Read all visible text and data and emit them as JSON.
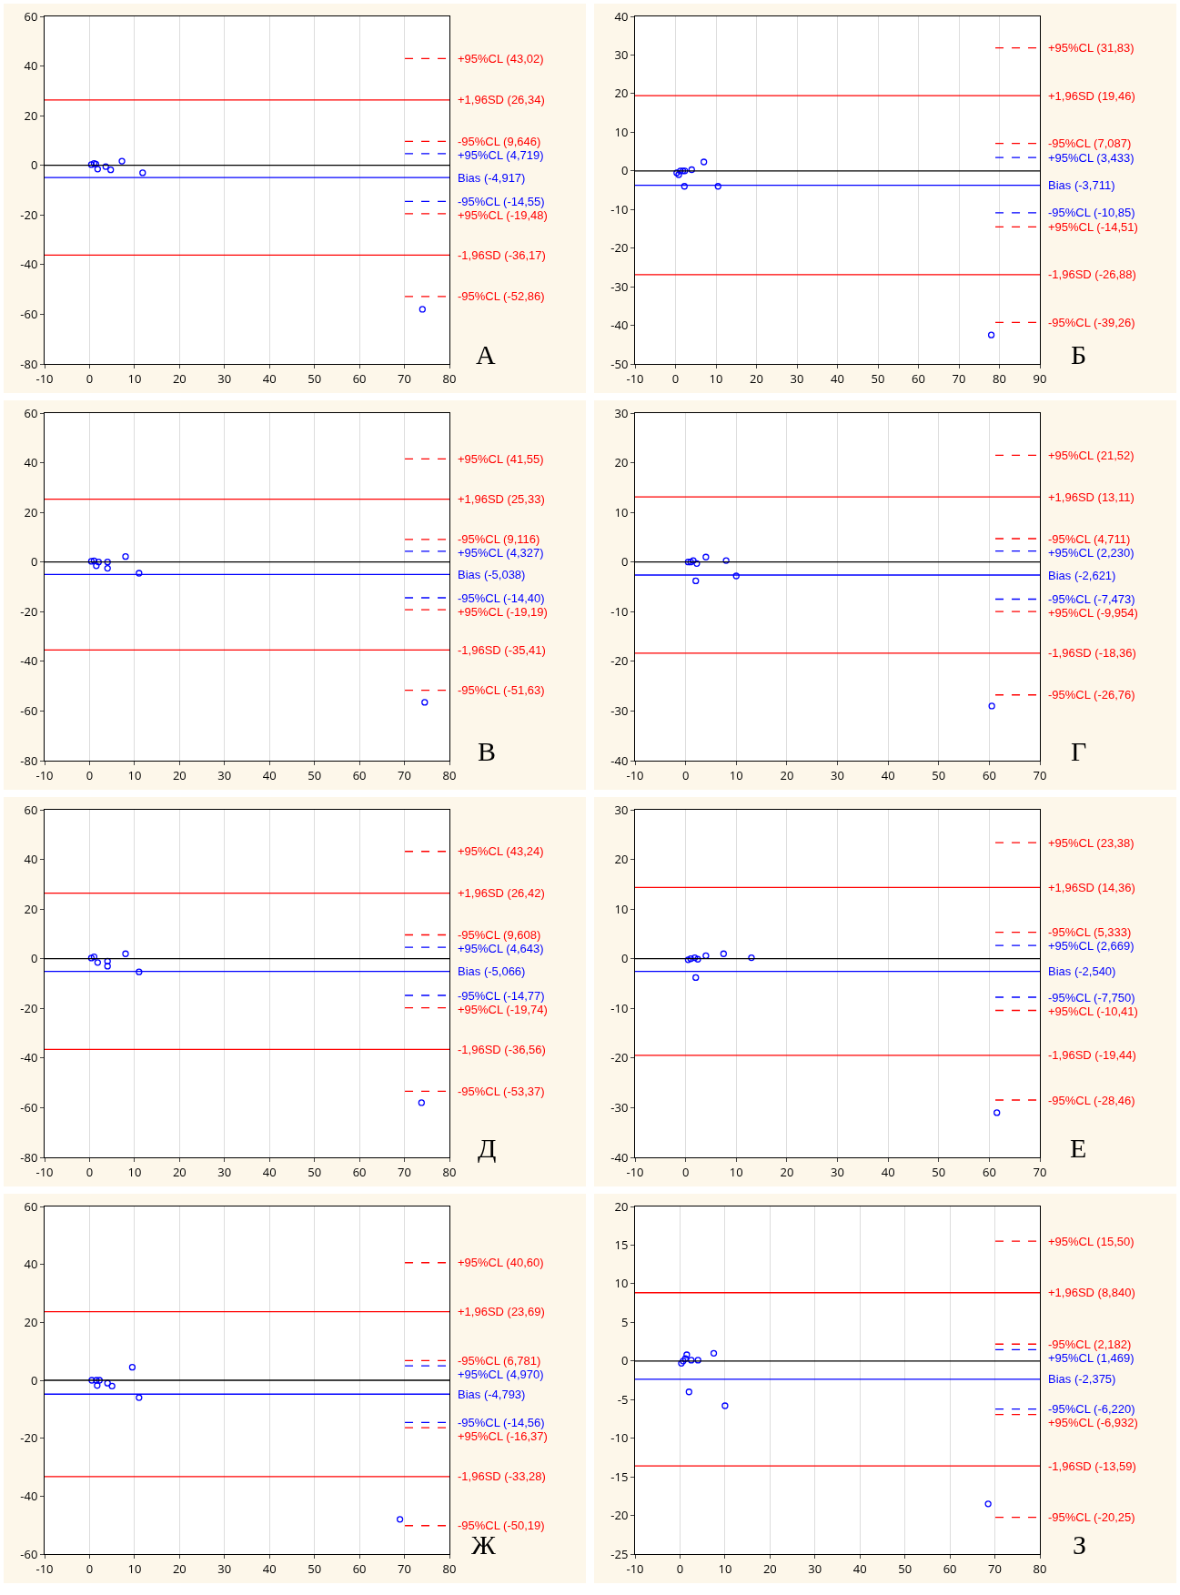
{
  "chart_data": [
    {
      "type": "scatter",
      "marker": "circle",
      "grid": "x",
      "legend": false,
      "annotations": [
        "А"
      ],
      "xlim": [
        -10,
        80
      ],
      "xticks": [
        -10,
        0,
        10,
        20,
        30,
        40,
        50,
        60,
        70,
        80
      ],
      "ylim": [
        -80,
        60
      ],
      "yticks": [
        -80,
        -60,
        -40,
        -20,
        0,
        20,
        40,
        60
      ],
      "series": [
        {
          "color": "#0000ff",
          "x": [
            0.4,
            1,
            1.4,
            1.8,
            3.6,
            4.7,
            7.2,
            11.8,
            74
          ],
          "values": [
            0.3,
            0.8,
            0.5,
            -1.5,
            -0.5,
            -1.8,
            1.7,
            -3,
            -58
          ]
        }
      ],
      "ref_lines": [
        {
          "axis": "y",
          "value": 0,
          "color": "#000000",
          "line_style": "solid"
        },
        {
          "axis": "y",
          "value": 43.02,
          "label": "+95%CL (43,02)",
          "color": "#ff0000",
          "line_style": "dashed"
        },
        {
          "axis": "y",
          "value": 26.34,
          "label": "+1,96SD (26,34)",
          "color": "#ff0000",
          "line_style": "solid"
        },
        {
          "axis": "y",
          "value": 9.646,
          "label": "-95%CL (9,646)",
          "color": "#ff0000",
          "line_style": "dashed"
        },
        {
          "axis": "y",
          "value": 4.719,
          "label": "+95%CL (4,719)",
          "color": "#0000ff",
          "line_style": "dashed"
        },
        {
          "axis": "y",
          "value": -4.917,
          "label": "Bias (-4,917)",
          "color": "#0000ff",
          "line_style": "solid"
        },
        {
          "axis": "y",
          "value": -14.55,
          "label": "-95%CL (-14,55)",
          "color": "#0000ff",
          "line_style": "dashed"
        },
        {
          "axis": "y",
          "value": -19.48,
          "label": "+95%CL (-19,48)",
          "color": "#ff0000",
          "line_style": "dashed"
        },
        {
          "axis": "y",
          "value": -36.17,
          "label": "-1,96SD (-36,17)",
          "color": "#ff0000",
          "line_style": "solid"
        },
        {
          "axis": "y",
          "value": -52.86,
          "label": "-95%CL (-52,86)",
          "color": "#ff0000",
          "line_style": "dashed"
        }
      ]
    },
    {
      "type": "scatter",
      "marker": "circle",
      "grid": "x",
      "legend": false,
      "annotations": [
        "Б"
      ],
      "xlim": [
        -10,
        90
      ],
      "xticks": [
        -10,
        0,
        10,
        20,
        30,
        40,
        50,
        60,
        70,
        80,
        90
      ],
      "ylim": [
        -50,
        40
      ],
      "yticks": [
        -50,
        -40,
        -30,
        -20,
        -10,
        0,
        10,
        20,
        30,
        40
      ],
      "series": [
        {
          "color": "#0000ff",
          "x": [
            0.3,
            0.8,
            1.2,
            1.8,
            2.3,
            4,
            7,
            2.2,
            10.5,
            78
          ],
          "values": [
            -0.5,
            -1,
            0,
            0,
            0,
            0.3,
            2.3,
            -4,
            -4,
            -42.5
          ]
        }
      ],
      "ref_lines": [
        {
          "axis": "y",
          "value": 0,
          "color": "#000000",
          "line_style": "solid"
        },
        {
          "axis": "y",
          "value": 31.83,
          "label": "+95%CL (31,83)",
          "color": "#ff0000",
          "line_style": "dashed"
        },
        {
          "axis": "y",
          "value": 19.46,
          "label": "+1,96SD (19,46)",
          "color": "#ff0000",
          "line_style": "solid"
        },
        {
          "axis": "y",
          "value": 7.087,
          "label": "-95%CL (7,087)",
          "color": "#ff0000",
          "line_style": "dashed"
        },
        {
          "axis": "y",
          "value": 3.433,
          "label": "+95%CL (3,433)",
          "color": "#0000ff",
          "line_style": "dashed"
        },
        {
          "axis": "y",
          "value": -3.711,
          "label": "Bias (-3,711)",
          "color": "#0000ff",
          "line_style": "solid"
        },
        {
          "axis": "y",
          "value": -10.85,
          "label": "-95%CL (-10,85)",
          "color": "#0000ff",
          "line_style": "dashed"
        },
        {
          "axis": "y",
          "value": -14.51,
          "label": "+95%CL (-14,51)",
          "color": "#ff0000",
          "line_style": "dashed"
        },
        {
          "axis": "y",
          "value": -26.88,
          "label": "-1,96SD (-26,88)",
          "color": "#ff0000",
          "line_style": "solid"
        },
        {
          "axis": "y",
          "value": -39.26,
          "label": "-95%CL (-39,26)",
          "color": "#ff0000",
          "line_style": "dashed"
        }
      ]
    },
    {
      "type": "scatter",
      "marker": "circle",
      "grid": "x",
      "legend": false,
      "annotations": [
        "В"
      ],
      "xlim": [
        -10,
        80
      ],
      "xticks": [
        -10,
        0,
        10,
        20,
        30,
        40,
        50,
        60,
        70,
        80
      ],
      "ylim": [
        -80,
        60
      ],
      "yticks": [
        -80,
        -60,
        -40,
        -20,
        0,
        20,
        40,
        60
      ],
      "series": [
        {
          "color": "#0000ff",
          "x": [
            0.4,
            1,
            1.5,
            2,
            4,
            4,
            8,
            11,
            74.5
          ],
          "values": [
            0.3,
            0.5,
            -1.5,
            0,
            0,
            -2.5,
            2.2,
            -4.5,
            -56.5
          ]
        }
      ],
      "ref_lines": [
        {
          "axis": "y",
          "value": 0,
          "color": "#000000",
          "line_style": "solid"
        },
        {
          "axis": "y",
          "value": 41.55,
          "label": "+95%CL (41,55)",
          "color": "#ff0000",
          "line_style": "dashed"
        },
        {
          "axis": "y",
          "value": 25.33,
          "label": "+1,96SD (25,33)",
          "color": "#ff0000",
          "line_style": "solid"
        },
        {
          "axis": "y",
          "value": 9.116,
          "label": "-95%CL (9,116)",
          "color": "#ff0000",
          "line_style": "dashed"
        },
        {
          "axis": "y",
          "value": 4.327,
          "label": "+95%CL (4,327)",
          "color": "#0000ff",
          "line_style": "dashed"
        },
        {
          "axis": "y",
          "value": -5.038,
          "label": "Bias (-5,038)",
          "color": "#0000ff",
          "line_style": "solid"
        },
        {
          "axis": "y",
          "value": -14.4,
          "label": "-95%CL (-14,40)",
          "color": "#0000ff",
          "line_style": "dashed"
        },
        {
          "axis": "y",
          "value": -19.19,
          "label": "+95%CL (-19,19)",
          "color": "#ff0000",
          "line_style": "dashed"
        },
        {
          "axis": "y",
          "value": -35.41,
          "label": "-1,96SD (-35,41)",
          "color": "#ff0000",
          "line_style": "solid"
        },
        {
          "axis": "y",
          "value": -51.63,
          "label": "-95%CL (-51,63)",
          "color": "#ff0000",
          "line_style": "dashed"
        }
      ]
    },
    {
      "type": "scatter",
      "marker": "circle",
      "grid": "x",
      "legend": false,
      "annotations": [
        "Г"
      ],
      "xlim": [
        -10,
        70
      ],
      "xticks": [
        -10,
        0,
        10,
        20,
        30,
        40,
        50,
        60,
        70
      ],
      "ylim": [
        -40,
        30
      ],
      "yticks": [
        -40,
        -30,
        -20,
        -10,
        0,
        10,
        20,
        30
      ],
      "series": [
        {
          "color": "#0000ff",
          "x": [
            0.5,
            1,
            1.5,
            2.2,
            2,
            4,
            8,
            10,
            60.5
          ],
          "values": [
            0,
            0,
            0.3,
            -0.3,
            -3.8,
            1,
            0.3,
            -2.8,
            -29
          ]
        }
      ],
      "ref_lines": [
        {
          "axis": "y",
          "value": 0,
          "color": "#000000",
          "line_style": "solid"
        },
        {
          "axis": "y",
          "value": 21.52,
          "label": "+95%CL (21,52)",
          "color": "#ff0000",
          "line_style": "dashed"
        },
        {
          "axis": "y",
          "value": 13.11,
          "label": "+1,96SD (13,11)",
          "color": "#ff0000",
          "line_style": "solid"
        },
        {
          "axis": "y",
          "value": 4.711,
          "label": "-95%CL (4,711)",
          "color": "#ff0000",
          "line_style": "dashed"
        },
        {
          "axis": "y",
          "value": 2.23,
          "label": "+95%CL (2,230)",
          "color": "#0000ff",
          "line_style": "dashed"
        },
        {
          "axis": "y",
          "value": -2.621,
          "label": "Bias (-2,621)",
          "color": "#0000ff",
          "line_style": "solid"
        },
        {
          "axis": "y",
          "value": -7.473,
          "label": "-95%CL (-7,473)",
          "color": "#0000ff",
          "line_style": "dashed"
        },
        {
          "axis": "y",
          "value": -9.954,
          "label": "+95%CL (-9,954)",
          "color": "#ff0000",
          "line_style": "dashed"
        },
        {
          "axis": "y",
          "value": -18.36,
          "label": "-1,96SD (-18,36)",
          "color": "#ff0000",
          "line_style": "solid"
        },
        {
          "axis": "y",
          "value": -26.76,
          "label": "-95%CL (-26,76)",
          "color": "#ff0000",
          "line_style": "dashed"
        }
      ]
    },
    {
      "type": "scatter",
      "marker": "circle",
      "grid": "x",
      "legend": false,
      "annotations": [
        "Д"
      ],
      "xlim": [
        -10,
        80
      ],
      "xticks": [
        -10,
        0,
        10,
        20,
        30,
        40,
        50,
        60,
        70,
        80
      ],
      "ylim": [
        -80,
        60
      ],
      "yticks": [
        -80,
        -60,
        -40,
        -20,
        0,
        20,
        40,
        60
      ],
      "series": [
        {
          "color": "#0000ff",
          "x": [
            0.4,
            1,
            1.8,
            4,
            4,
            8,
            11,
            73.8
          ],
          "values": [
            0.3,
            0.8,
            -1.5,
            -1,
            -3,
            2,
            -5.3,
            -58
          ]
        }
      ],
      "ref_lines": [
        {
          "axis": "y",
          "value": 0,
          "color": "#000000",
          "line_style": "solid"
        },
        {
          "axis": "y",
          "value": 43.24,
          "label": "+95%CL (43,24)",
          "color": "#ff0000",
          "line_style": "dashed"
        },
        {
          "axis": "y",
          "value": 26.42,
          "label": "+1,96SD (26,42)",
          "color": "#ff0000",
          "line_style": "solid"
        },
        {
          "axis": "y",
          "value": 9.608,
          "label": "-95%CL (9,608)",
          "color": "#ff0000",
          "line_style": "dashed"
        },
        {
          "axis": "y",
          "value": 4.643,
          "label": "+95%CL (4,643)",
          "color": "#0000ff",
          "line_style": "dashed"
        },
        {
          "axis": "y",
          "value": -5.066,
          "label": "Bias (-5,066)",
          "color": "#0000ff",
          "line_style": "solid"
        },
        {
          "axis": "y",
          "value": -14.77,
          "label": "-95%CL (-14,77)",
          "color": "#0000ff",
          "line_style": "dashed"
        },
        {
          "axis": "y",
          "value": -19.74,
          "label": "+95%CL (-19,74)",
          "color": "#ff0000",
          "line_style": "dashed"
        },
        {
          "axis": "y",
          "value": -36.56,
          "label": "-1,96SD (-36,56)",
          "color": "#ff0000",
          "line_style": "solid"
        },
        {
          "axis": "y",
          "value": -53.37,
          "label": "-95%CL (-53,37)",
          "color": "#ff0000",
          "line_style": "dashed"
        }
      ]
    },
    {
      "type": "scatter",
      "marker": "circle",
      "grid": "x",
      "legend": false,
      "annotations": [
        "Е"
      ],
      "xlim": [
        -10,
        70
      ],
      "xticks": [
        -10,
        0,
        10,
        20,
        30,
        40,
        50,
        60,
        70
      ],
      "ylim": [
        -40,
        30
      ],
      "yticks": [
        -40,
        -30,
        -20,
        -10,
        0,
        10,
        20,
        30
      ],
      "series": [
        {
          "color": "#0000ff",
          "x": [
            0.5,
            1,
            1.8,
            2.4,
            2,
            4,
            7.5,
            13,
            61.5
          ],
          "values": [
            -0.2,
            0,
            0.2,
            -0.1,
            -3.8,
            0.6,
            1,
            0.2,
            -31
          ]
        }
      ],
      "ref_lines": [
        {
          "axis": "y",
          "value": 0,
          "color": "#000000",
          "line_style": "solid"
        },
        {
          "axis": "y",
          "value": 23.38,
          "label": "+95%CL (23,38)",
          "color": "#ff0000",
          "line_style": "dashed"
        },
        {
          "axis": "y",
          "value": 14.36,
          "label": "+1,96SD (14,36)",
          "color": "#ff0000",
          "line_style": "solid"
        },
        {
          "axis": "y",
          "value": 5.333,
          "label": "-95%CL (5,333)",
          "color": "#ff0000",
          "line_style": "dashed"
        },
        {
          "axis": "y",
          "value": 2.669,
          "label": "+95%CL (2,669)",
          "color": "#0000ff",
          "line_style": "dashed"
        },
        {
          "axis": "y",
          "value": -2.54,
          "label": "Bias (-2,540)",
          "color": "#0000ff",
          "line_style": "solid"
        },
        {
          "axis": "y",
          "value": -7.75,
          "label": "-95%CL (-7,750)",
          "color": "#0000ff",
          "line_style": "dashed"
        },
        {
          "axis": "y",
          "value": -10.41,
          "label": "+95%CL (-10,41)",
          "color": "#ff0000",
          "line_style": "dashed"
        },
        {
          "axis": "y",
          "value": -19.44,
          "label": "-1,96SD (-19,44)",
          "color": "#ff0000",
          "line_style": "solid"
        },
        {
          "axis": "y",
          "value": -28.46,
          "label": "-95%CL (-28,46)",
          "color": "#ff0000",
          "line_style": "dashed"
        }
      ]
    },
    {
      "type": "scatter",
      "marker": "circle",
      "grid": "x",
      "legend": false,
      "annotations": [
        "Ж"
      ],
      "xlim": [
        -10,
        80
      ],
      "xticks": [
        -10,
        0,
        10,
        20,
        30,
        40,
        50,
        60,
        70,
        80
      ],
      "ylim": [
        -60,
        60
      ],
      "yticks": [
        -60,
        -40,
        -20,
        0,
        20,
        40,
        60
      ],
      "series": [
        {
          "color": "#0000ff",
          "x": [
            0.5,
            1.5,
            2.2,
            1.7,
            4,
            5,
            9.5,
            11,
            69
          ],
          "values": [
            0,
            0,
            0,
            -1.8,
            -1,
            -2,
            4.5,
            -6,
            -48
          ]
        }
      ],
      "ref_lines": [
        {
          "axis": "y",
          "value": 0,
          "color": "#000000",
          "line_style": "solid"
        },
        {
          "axis": "y",
          "value": 40.6,
          "label": "+95%CL (40,60)",
          "color": "#ff0000",
          "line_style": "dashed"
        },
        {
          "axis": "y",
          "value": 23.69,
          "label": "+1,96SD (23,69)",
          "color": "#ff0000",
          "line_style": "solid"
        },
        {
          "axis": "y",
          "value": 6.781,
          "label": "-95%CL (6,781)",
          "color": "#ff0000",
          "line_style": "dashed"
        },
        {
          "axis": "y",
          "value": 4.97,
          "label": "+95%CL (4,970)",
          "color": "#0000ff",
          "line_style": "dashed"
        },
        {
          "axis": "y",
          "value": -4.793,
          "label": "Bias (-4,793)",
          "color": "#0000ff",
          "line_style": "solid"
        },
        {
          "axis": "y",
          "value": -14.56,
          "label": "-95%CL (-14,56)",
          "color": "#0000ff",
          "line_style": "dashed"
        },
        {
          "axis": "y",
          "value": -16.37,
          "label": "+95%CL (-16,37)",
          "color": "#ff0000",
          "line_style": "dashed"
        },
        {
          "axis": "y",
          "value": -33.28,
          "label": "-1,96SD (-33,28)",
          "color": "#ff0000",
          "line_style": "solid"
        },
        {
          "axis": "y",
          "value": -50.19,
          "label": "-95%CL (-50,19)",
          "color": "#ff0000",
          "line_style": "dashed"
        }
      ]
    },
    {
      "type": "scatter",
      "marker": "circle",
      "grid": "x",
      "legend": false,
      "annotations": [
        "З"
      ],
      "xlim": [
        -10,
        80
      ],
      "xticks": [
        -10,
        0,
        10,
        20,
        30,
        40,
        50,
        60,
        70,
        80
      ],
      "ylim": [
        -25,
        20
      ],
      "yticks": [
        -25,
        -20,
        -15,
        -10,
        -5,
        0,
        5,
        10,
        15,
        20
      ],
      "series": [
        {
          "color": "#0000ff",
          "x": [
            0.3,
            0.7,
            1.5,
            1.2,
            2.5,
            4,
            7.5,
            2,
            10,
            68.5
          ],
          "values": [
            -0.3,
            0,
            0.8,
            0.3,
            0.1,
            0.1,
            1,
            -4,
            -5.8,
            -18.5
          ]
        }
      ],
      "ref_lines": [
        {
          "axis": "y",
          "value": 0,
          "color": "#000000",
          "line_style": "solid"
        },
        {
          "axis": "y",
          "value": 15.5,
          "label": "+95%CL (15,50)",
          "color": "#ff0000",
          "line_style": "dashed"
        },
        {
          "axis": "y",
          "value": 8.84,
          "label": "+1,96SD (8,840)",
          "color": "#ff0000",
          "line_style": "solid"
        },
        {
          "axis": "y",
          "value": 2.182,
          "label": "-95%CL (2,182)",
          "color": "#ff0000",
          "line_style": "dashed"
        },
        {
          "axis": "y",
          "value": 1.469,
          "label": "+95%CL (1,469)",
          "color": "#0000ff",
          "line_style": "dashed"
        },
        {
          "axis": "y",
          "value": -2.375,
          "label": "Bias (-2,375)",
          "color": "#0000ff",
          "line_style": "solid"
        },
        {
          "axis": "y",
          "value": -6.22,
          "label": "-95%CL (-6,220)",
          "color": "#0000ff",
          "line_style": "dashed"
        },
        {
          "axis": "y",
          "value": -6.932,
          "label": "+95%CL (-6,932)",
          "color": "#ff0000",
          "line_style": "dashed"
        },
        {
          "axis": "y",
          "value": -13.59,
          "label": "-1,96SD (-13,59)",
          "color": "#ff0000",
          "line_style": "solid"
        },
        {
          "axis": "y",
          "value": -20.25,
          "label": "-95%CL (-20,25)",
          "color": "#ff0000",
          "line_style": "dashed"
        }
      ]
    }
  ]
}
